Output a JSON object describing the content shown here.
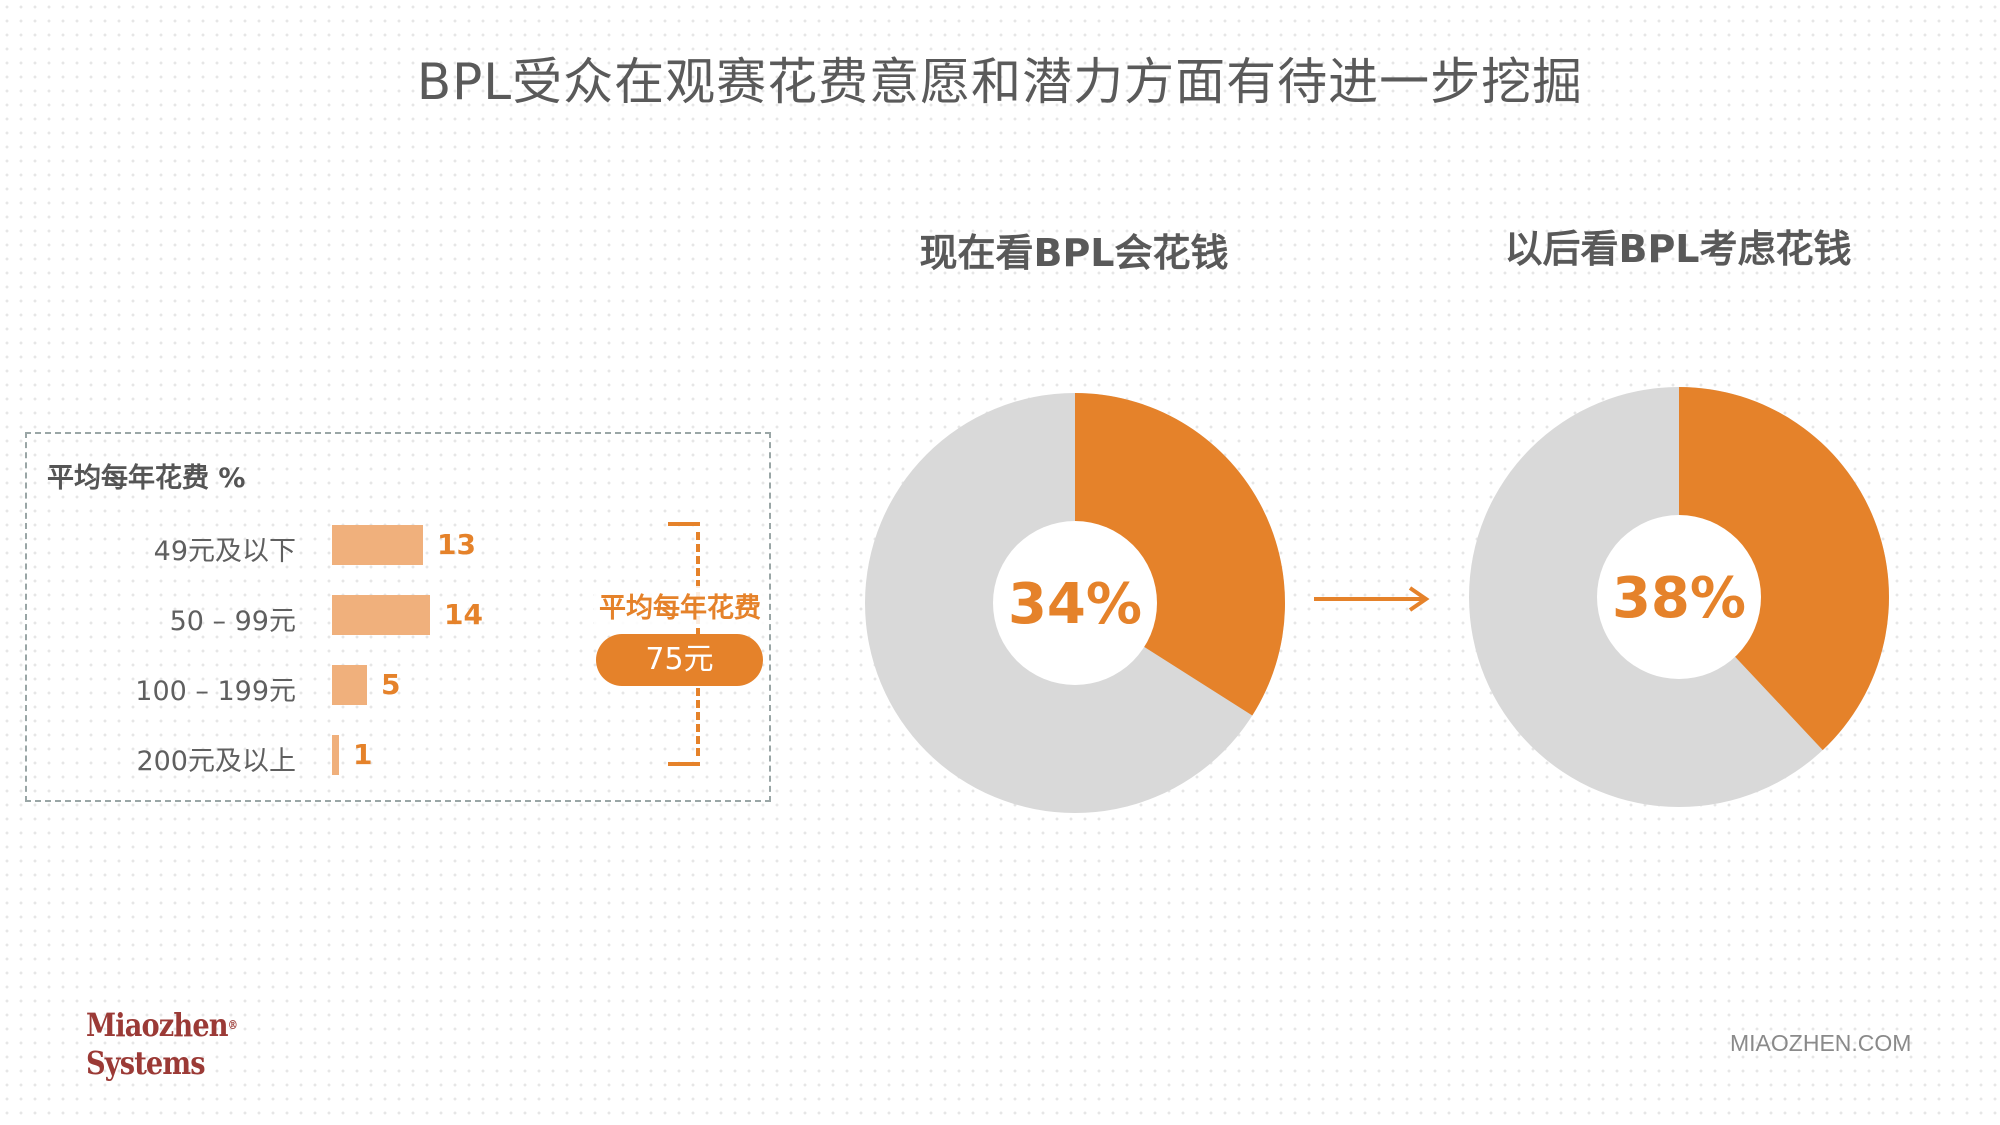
{
  "page": {
    "title": "BPL受众在观赛花费意愿和潜力方面有待进一步挖掘"
  },
  "spending_panel": {
    "title": "平均每年花费 %",
    "average_label": "平均每年花费",
    "average_value": "75元"
  },
  "chart_data": [
    {
      "type": "bar",
      "orientation": "horizontal",
      "title": "平均每年花费 %",
      "categories": [
        "49元及以下",
        "50 – 99元",
        "100 – 199元",
        "200元及以上"
      ],
      "values": [
        13,
        14,
        5,
        1
      ],
      "value_labels": [
        "13",
        "14",
        "5",
        "1"
      ],
      "color": "#f0b07c",
      "label_color": "#e5822a"
    },
    {
      "type": "pie",
      "style": "donut",
      "title": "现在看BPL会花钱",
      "value": 34,
      "label": "34%",
      "colors": {
        "highlight": "#e5822a",
        "rest": "#d9d9d9"
      }
    },
    {
      "type": "pie",
      "style": "donut",
      "title": "以后看BPL考虑花钱",
      "value": 38,
      "label": "38%",
      "colors": {
        "highlight": "#e5822a",
        "rest": "#d9d9d9"
      }
    }
  ],
  "footer": {
    "logo_line1": "Miaozhen",
    "logo_line2": "Systems",
    "logo_mark": "®",
    "site": "MIAOZHEN.COM"
  }
}
